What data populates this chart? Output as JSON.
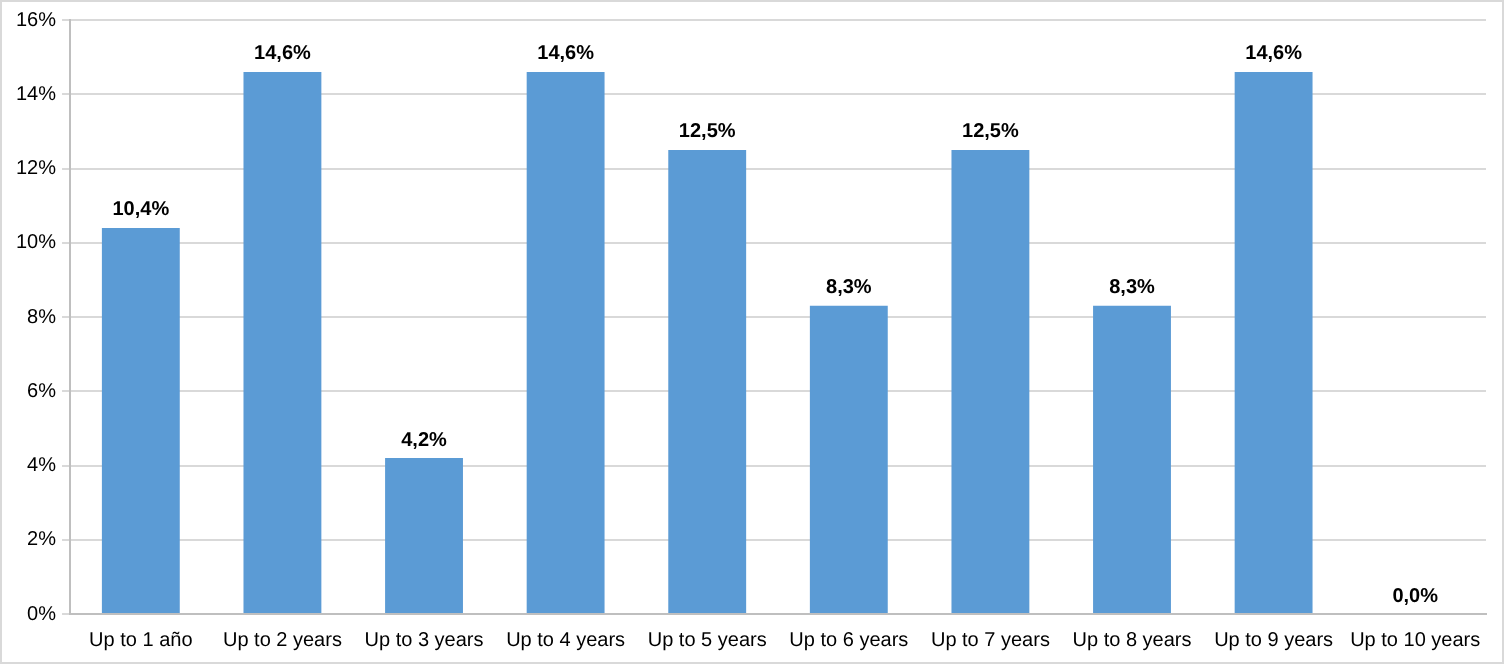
{
  "chart_data": {
    "type": "bar",
    "categories": [
      "Up to 1 año",
      "Up to 2 years",
      "Up to 3 years",
      "Up to 4 years",
      "Up to 5 years",
      "Up to 6 years",
      "Up to 7 years",
      "Up to 8 years",
      "Up to 9 years",
      "Up to 10 years"
    ],
    "values": [
      10.4,
      14.6,
      4.2,
      14.6,
      12.5,
      8.3,
      12.5,
      8.3,
      14.6,
      0
    ],
    "value_labels": [
      "10,4%",
      "14,6%",
      "4,2%",
      "14,6%",
      "12,5%",
      "8,3%",
      "12,5%",
      "8,3%",
      "14,6%",
      "0,0%"
    ],
    "color": "#5b9bd5",
    "ylim": [
      0,
      16
    ],
    "yticks": [
      {
        "value": 0,
        "label": "0%"
      },
      {
        "value": 2,
        "label": "2%"
      },
      {
        "value": 4,
        "label": "4%"
      },
      {
        "value": 6,
        "label": "6%"
      },
      {
        "value": 8,
        "label": "8%"
      },
      {
        "value": 10,
        "label": "10%"
      },
      {
        "value": 12,
        "label": "12%"
      },
      {
        "value": 14,
        "label": "14%"
      },
      {
        "value": 16,
        "label": "16%"
      }
    ],
    "grid": "y",
    "legend": false
  }
}
